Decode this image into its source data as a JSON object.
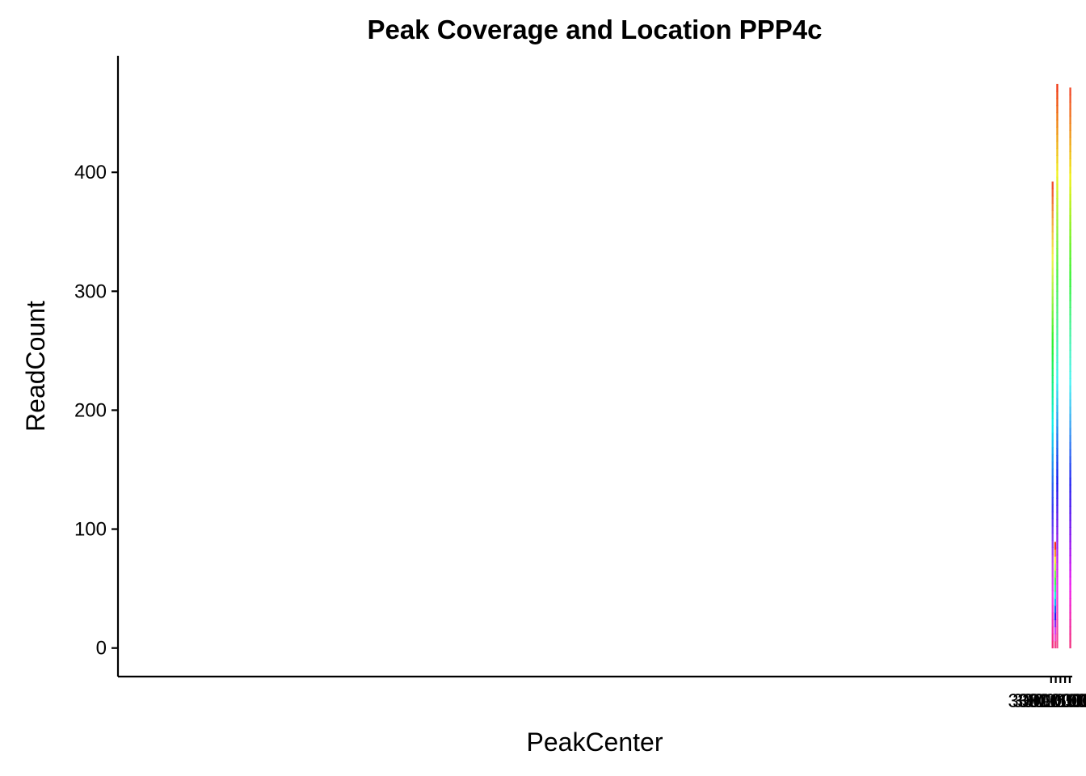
{
  "chart_data": {
    "type": "bar",
    "title": "Peak Coverage and Location PPP4c",
    "xlabel": "PeakCenter",
    "ylabel": "ReadCount",
    "xlim": [
      29089600,
      30112700
    ],
    "ylim": [
      -24,
      498
    ],
    "x_ticks": [
      30090000,
      30095000,
      30100000,
      30105000,
      30110000
    ],
    "x_tick_labels": [
      "30090000",
      "30095000",
      "30100000",
      "30105000",
      "30110000"
    ],
    "y_ticks": [
      0,
      100,
      200,
      300,
      400
    ],
    "y_tick_labels": [
      "0",
      "100",
      "200",
      "300",
      "400"
    ],
    "fill": "stacked segments colored by a continuous hue gradient (pink at bottom through purple, blue, teal, green, olive, orange to red at top)",
    "bars": [
      {
        "x_start": 30090650,
        "x_end": 30092620,
        "value": 392
      },
      {
        "x_start": 30093450,
        "x_end": 30095420,
        "value": 89
      },
      {
        "x_start": 30095650,
        "x_end": 30097620,
        "value": 474
      },
      {
        "x_start": 30109600,
        "x_end": 30111570,
        "value": 471
      }
    ]
  }
}
